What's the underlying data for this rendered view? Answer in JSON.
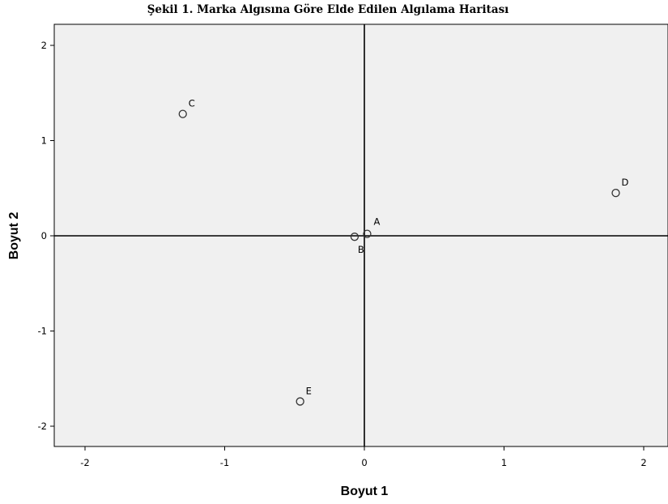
{
  "chart_data": {
    "type": "scatter",
    "title": "Şekil 1. Marka Algısına Göre Elde Edilen Algılama Haritası",
    "xlabel": "Boyut 1",
    "ylabel": "Boyut 2",
    "xlim": [
      -2.22,
      2.22
    ],
    "ylim": [
      -2.22,
      2.22
    ],
    "x_ticks": [
      -2,
      -1,
      0,
      1,
      2
    ],
    "y_ticks": [
      -2,
      -1,
      0,
      1,
      2
    ],
    "x_tick_labels": [
      "-2",
      "-1",
      "0",
      "1",
      "2"
    ],
    "y_tick_labels": [
      "-2",
      "-1",
      "0",
      "1",
      "2"
    ],
    "grid": false,
    "reference_lines": {
      "x": 0,
      "y": 0
    },
    "points": [
      {
        "label": "A",
        "x": 0.02,
        "y": 0.02
      },
      {
        "label": "B",
        "x": -0.07,
        "y": -0.01
      },
      {
        "label": "C",
        "x": -1.3,
        "y": 1.28
      },
      {
        "label": "D",
        "x": 1.8,
        "y": 0.45
      },
      {
        "label": "E",
        "x": -0.46,
        "y": -1.74
      }
    ],
    "colors": {
      "plot_background": "#f0f0f0",
      "marker_stroke": "#333333",
      "axes": "#000000"
    }
  }
}
